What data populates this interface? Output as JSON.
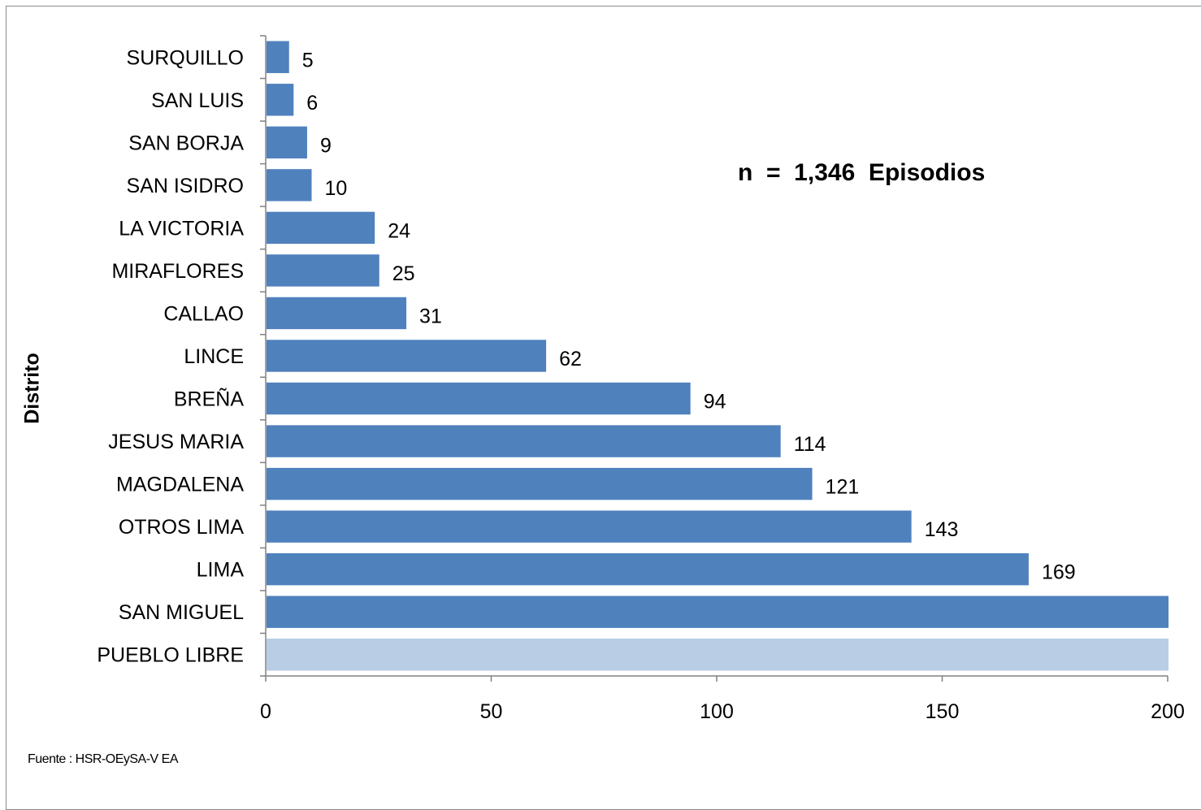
{
  "chart_data": {
    "type": "bar",
    "orientation": "horizontal",
    "categories": [
      "SURQUILLO",
      "SAN LUIS",
      "SAN BORJA",
      "SAN ISIDRO",
      "LA VICTORIA",
      "MIRAFLORES",
      "CALLAO",
      "LINCE",
      "BREÑA",
      "JESUS MARIA",
      "MAGDALENA",
      "OTROS LIMA",
      "LIMA",
      "SAN MIGUEL",
      "PUEBLO LIBRE"
    ],
    "values": [
      5,
      6,
      9,
      10,
      24,
      25,
      31,
      62,
      94,
      114,
      121,
      143,
      169,
      200,
      200
    ],
    "value_labels": [
      "5",
      "6",
      "9",
      "10",
      "24",
      "25",
      "31",
      "62",
      "94",
      "114",
      "121",
      "143",
      "169",
      "",
      ""
    ],
    "ylabel": "Distrito",
    "xlim": [
      0,
      200
    ],
    "xticks": [
      0,
      50,
      100,
      150,
      200
    ],
    "grid": false,
    "colors": {
      "bar": "#4f81bd",
      "highlight": "#b9cde5"
    },
    "highlight_index": 14,
    "annotation": "n  =  1,346  Episodios"
  },
  "source": "Fuente  : HSR-OEySA-V EA"
}
